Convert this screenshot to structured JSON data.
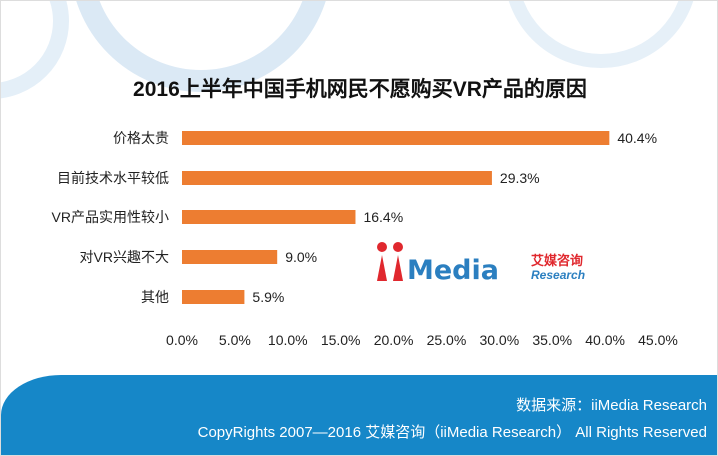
{
  "chart_data": {
    "type": "bar",
    "orientation": "horizontal",
    "title": "2016上半年中国手机网民不愿购买VR产品的原因",
    "categories": [
      "价格太贵",
      "目前技术水平较低",
      "VR产品实用性较小",
      "对VR兴趣不大",
      "其他"
    ],
    "values": [
      40.4,
      29.3,
      16.4,
      9.0,
      5.9
    ],
    "value_labels": [
      "40.4%",
      "29.3%",
      "16.4%",
      "9.0%",
      "5.9%"
    ],
    "xlim": [
      0,
      45
    ],
    "xticks": [
      "0.0%",
      "5.0%",
      "10.0%",
      "15.0%",
      "20.0%",
      "25.0%",
      "30.0%",
      "35.0%",
      "40.0%",
      "45.0%"
    ],
    "grid": false,
    "bar_color": "#ED7D31"
  },
  "logo": {
    "text": "iiMedia",
    "cn": "艾媒咨询",
    "sub": "Research"
  },
  "footer": {
    "source": "数据来源：iiMedia Research",
    "copyright": "CopyRights 2007—2016 艾媒咨询（iiMedia Research） All Rights Reserved",
    "color": "#1687C8"
  }
}
